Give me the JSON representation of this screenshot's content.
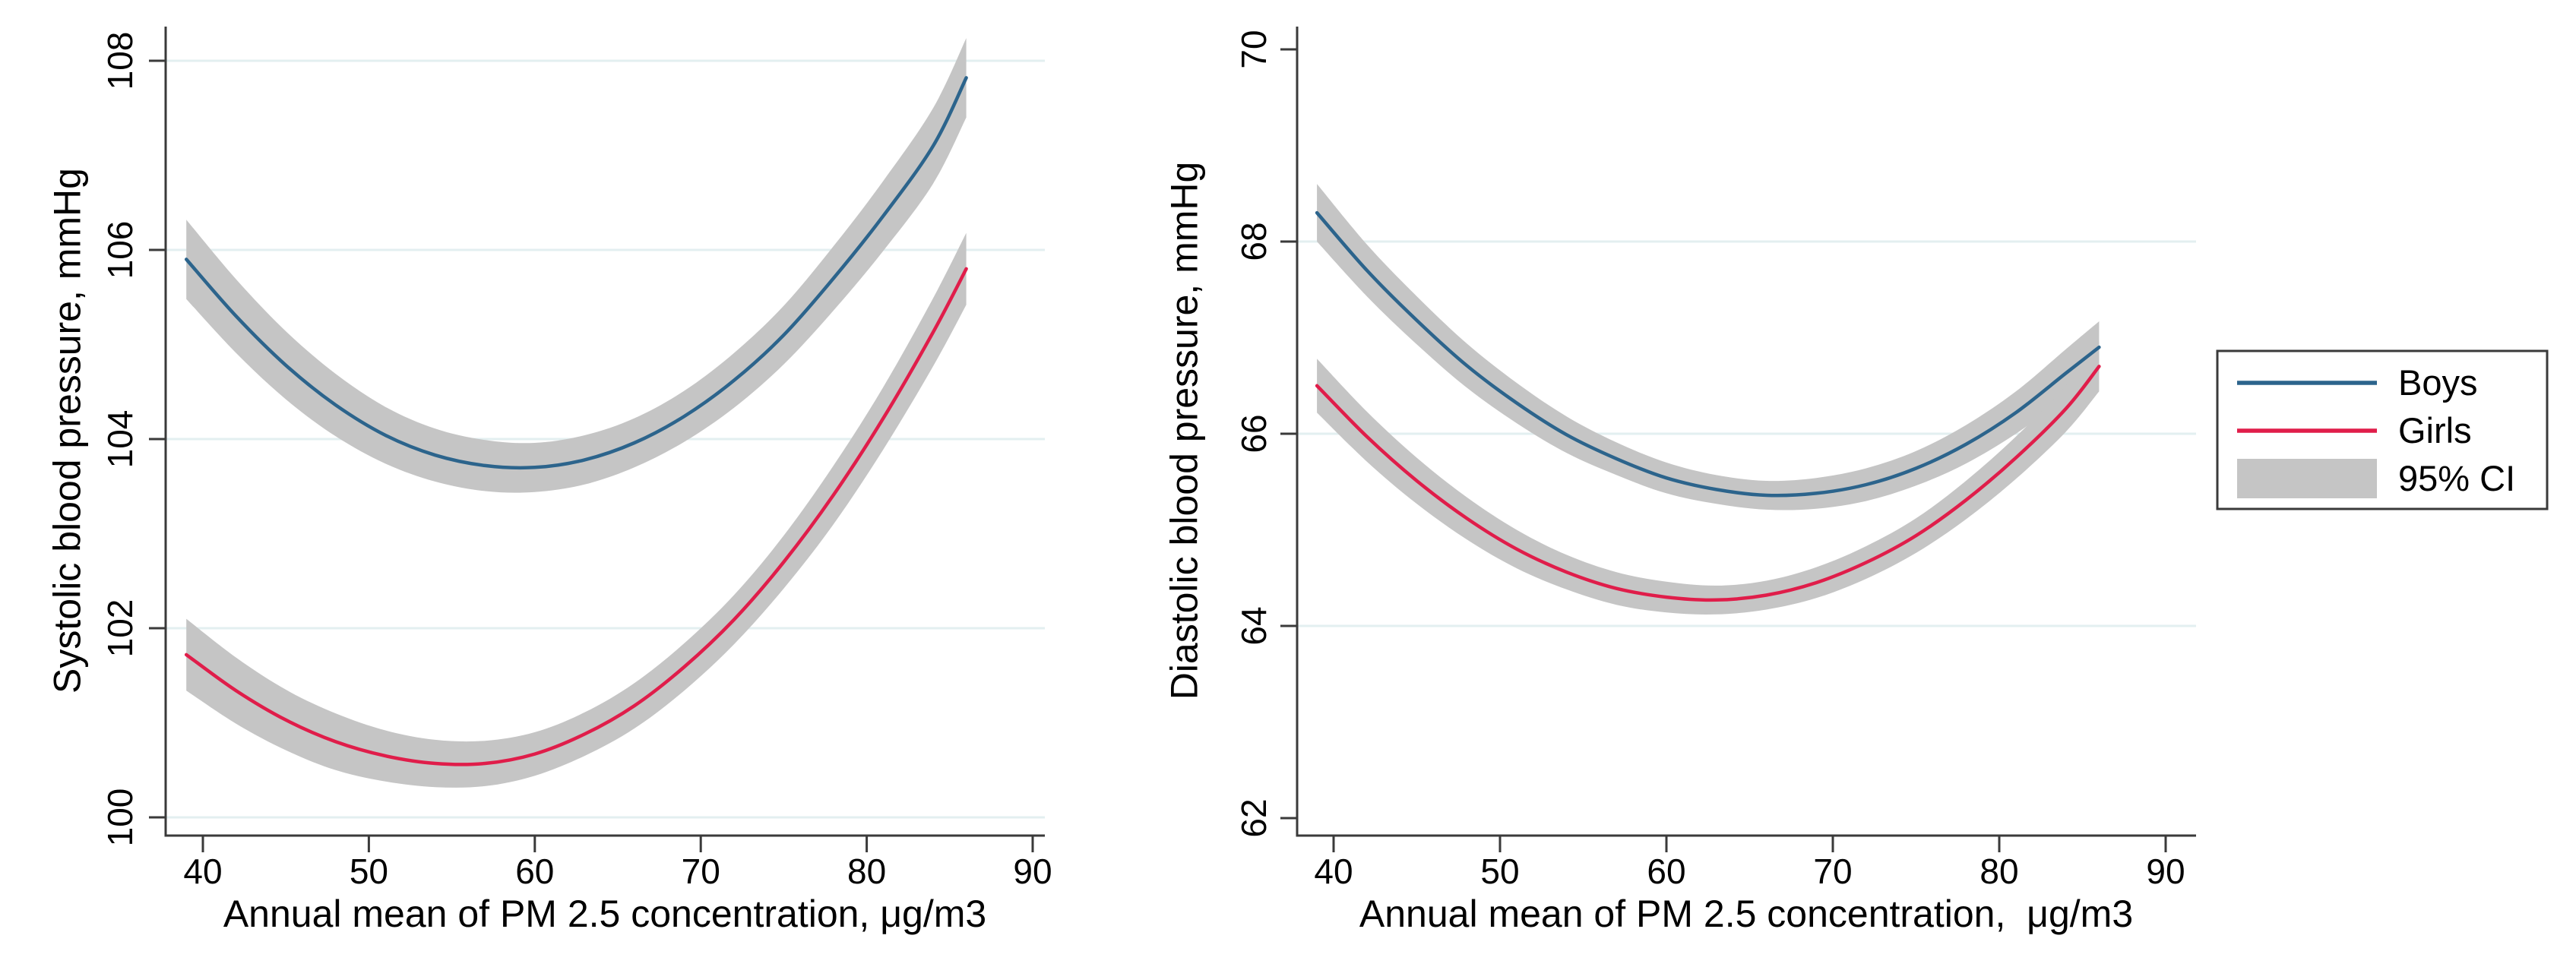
{
  "colors": {
    "boys": "#2C648C",
    "girls": "#E01D4A",
    "ci_band": "#C5C5C5",
    "gridline": "#E3EFF0",
    "axis": "#3A3A3A",
    "text": "#000000",
    "legend_border": "#3A3A3A",
    "background": "#FFFFFF"
  },
  "legend": {
    "items": [
      {
        "label": "Boys",
        "swatch": "line",
        "color_key": "boys"
      },
      {
        "label": "Girls",
        "swatch": "line",
        "color_key": "girls"
      },
      {
        "label": "95% CI",
        "swatch": "box",
        "color_key": "ci_band"
      }
    ]
  },
  "chart_data": [
    {
      "type": "line",
      "panel": "systolic",
      "title": "",
      "xlabel": "Annual mean of PM 2.5 concentration, μg/m3",
      "ylabel": "Systolic blood pressure, mmHg",
      "xlim": [
        37.8,
        91.5
      ],
      "ylim": [
        99.7,
        108.7
      ],
      "xticks": [
        40,
        50,
        60,
        70,
        80,
        90
      ],
      "yticks": [
        100,
        102,
        104,
        106,
        108
      ],
      "grid_yticks": [
        100,
        102,
        104,
        106,
        108
      ],
      "grid_on": true,
      "legend_position": "outside-right",
      "x": [
        39,
        42,
        45,
        48,
        51,
        54,
        57,
        60,
        63,
        66,
        69,
        72,
        75,
        78,
        81,
        84,
        86
      ],
      "series": [
        {
          "name": "Boys",
          "color_key": "boys",
          "y": [
            105.9,
            105.3,
            104.78,
            104.36,
            104.04,
            103.83,
            103.72,
            103.7,
            103.78,
            103.96,
            104.24,
            104.62,
            105.1,
            105.7,
            106.36,
            107.1,
            107.82
          ],
          "ci_lo": [
            105.48,
            104.91,
            104.42,
            104.03,
            103.74,
            103.55,
            103.45,
            103.44,
            103.52,
            103.7,
            103.97,
            104.33,
            104.79,
            105.36,
            105.99,
            106.7,
            107.4
          ],
          "ci_hi": [
            106.32,
            105.69,
            105.14,
            104.69,
            104.34,
            104.11,
            103.99,
            103.96,
            104.04,
            104.22,
            104.51,
            104.91,
            105.41,
            106.04,
            106.73,
            107.5,
            108.24
          ]
        },
        {
          "name": "Girls",
          "color_key": "girls",
          "y": [
            101.72,
            101.34,
            101.03,
            100.8,
            100.65,
            100.57,
            100.57,
            100.67,
            100.88,
            101.18,
            101.59,
            102.09,
            102.7,
            103.41,
            104.22,
            105.13,
            105.8
          ],
          "ci_lo": [
            101.34,
            100.99,
            100.71,
            100.5,
            100.38,
            100.32,
            100.33,
            100.44,
            100.65,
            100.94,
            101.34,
            101.83,
            102.42,
            103.1,
            103.89,
            104.77,
            105.42
          ],
          "ci_hi": [
            102.1,
            101.69,
            101.35,
            101.1,
            100.92,
            100.82,
            100.81,
            100.9,
            101.11,
            101.42,
            101.84,
            102.35,
            102.98,
            103.72,
            104.55,
            105.49,
            106.18
          ]
        }
      ]
    },
    {
      "type": "line",
      "panel": "diastolic",
      "title": "",
      "xlabel": "Annual mean of PM 2.5 concentration,  μg/m3",
      "ylabel": "Diastolic blood pressure, mmHg",
      "xlim": [
        37.8,
        91.5
      ],
      "ylim": [
        61.5,
        70.3
      ],
      "xticks": [
        40,
        50,
        60,
        70,
        80,
        90
      ],
      "yticks": [
        62,
        64,
        66,
        68,
        70
      ],
      "grid_yticks": [
        64,
        66,
        68
      ],
      "grid_on": true,
      "legend_position": "outside-right",
      "x": [
        39,
        42,
        45,
        48,
        51,
        54,
        57,
        60,
        63,
        66,
        69,
        72,
        75,
        78,
        81,
        84,
        86
      ],
      "series": [
        {
          "name": "Boys",
          "color_key": "boys",
          "y": [
            68.3,
            67.7,
            67.18,
            66.71,
            66.32,
            65.99,
            65.74,
            65.54,
            65.42,
            65.36,
            65.38,
            65.47,
            65.64,
            65.89,
            66.22,
            66.63,
            66.9
          ],
          "ci_lo": [
            68.0,
            67.43,
            66.93,
            66.48,
            66.11,
            65.8,
            65.57,
            65.38,
            65.27,
            65.21,
            65.22,
            65.3,
            65.46,
            65.69,
            66.0,
            66.38,
            66.63
          ],
          "ci_hi": [
            68.6,
            67.97,
            67.43,
            66.94,
            66.53,
            66.18,
            65.91,
            65.7,
            65.57,
            65.51,
            65.54,
            65.64,
            65.82,
            66.09,
            66.44,
            66.88,
            67.17
          ]
        },
        {
          "name": "Girls",
          "color_key": "girls",
          "y": [
            66.5,
            65.97,
            65.51,
            65.12,
            64.8,
            64.56,
            64.39,
            64.3,
            64.27,
            64.32,
            64.45,
            64.66,
            64.94,
            65.31,
            65.75,
            66.26,
            66.7
          ],
          "ci_lo": [
            66.22,
            65.71,
            65.27,
            64.9,
            64.6,
            64.38,
            64.22,
            64.14,
            64.12,
            64.17,
            64.29,
            64.49,
            64.76,
            65.11,
            65.53,
            66.02,
            66.44
          ],
          "ci_hi": [
            66.78,
            66.23,
            65.75,
            65.34,
            65.0,
            64.74,
            64.56,
            64.46,
            64.42,
            64.47,
            64.61,
            64.83,
            65.12,
            65.51,
            65.97,
            66.5,
            66.96
          ]
        }
      ]
    }
  ]
}
